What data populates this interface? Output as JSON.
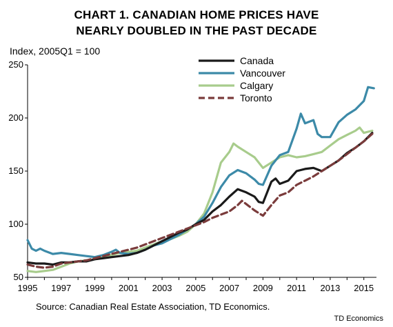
{
  "title_line1": "CHART 1. CANADIAN HOME PRICES HAVE",
  "title_line2": "NEARLY DOUBLED IN THE PAST DECADE",
  "source": "Source: Canadian Real Estate Association, TD Economics.",
  "credit": "TD Economics",
  "chart_data": {
    "type": "line",
    "title": "CHART 1. CANADIAN HOME PRICES HAVE NEARLY DOUBLED IN THE PAST DECADE",
    "ylabel": "Index, 2005Q1 = 100",
    "xlabel": "",
    "xlim": [
      1995,
      2015.75
    ],
    "ylim": [
      50,
      250
    ],
    "x_ticks": [
      1995,
      1997,
      1999,
      2001,
      2003,
      2005,
      2007,
      2009,
      2011,
      2013,
      2015
    ],
    "x_tick_labels": [
      "1995",
      "1997",
      "1999",
      "2001",
      "2003",
      "2005",
      "2007",
      "2009",
      "2011",
      "2013",
      "2015"
    ],
    "y_ticks": [
      50,
      100,
      150,
      200,
      250
    ],
    "y_tick_labels": [
      "50",
      "100",
      "150",
      "200",
      "250"
    ],
    "grid": false,
    "legend_position": "top-center",
    "series": [
      {
        "name": "Canada",
        "color": "#1a1a1a",
        "dash": "solid",
        "points": [
          [
            1995,
            64
          ],
          [
            1995.5,
            63
          ],
          [
            1996,
            63
          ],
          [
            1996.5,
            62
          ],
          [
            1997,
            64
          ],
          [
            1997.5,
            64
          ],
          [
            1998,
            65
          ],
          [
            1998.5,
            65
          ],
          [
            1999,
            67
          ],
          [
            1999.5,
            68
          ],
          [
            2000,
            69
          ],
          [
            2000.5,
            70
          ],
          [
            2001,
            71
          ],
          [
            2001.5,
            73
          ],
          [
            2002,
            76
          ],
          [
            2002.5,
            80
          ],
          [
            2003,
            84
          ],
          [
            2003.5,
            88
          ],
          [
            2004,
            92
          ],
          [
            2004.5,
            95
          ],
          [
            2005,
            100
          ],
          [
            2005.5,
            104
          ],
          [
            2006,
            112
          ],
          [
            2006.5,
            118
          ],
          [
            2007,
            126
          ],
          [
            2007.5,
            133
          ],
          [
            2008,
            130
          ],
          [
            2008.5,
            126
          ],
          [
            2008.75,
            121
          ],
          [
            2009,
            120
          ],
          [
            2009.25,
            130
          ],
          [
            2009.5,
            140
          ],
          [
            2009.75,
            143
          ],
          [
            2010,
            138
          ],
          [
            2010.5,
            141
          ],
          [
            2011,
            150
          ],
          [
            2011.5,
            152
          ],
          [
            2012,
            153
          ],
          [
            2012.5,
            150
          ],
          [
            2013,
            155
          ],
          [
            2013.5,
            160
          ],
          [
            2014,
            167
          ],
          [
            2014.5,
            172
          ],
          [
            2015,
            178
          ],
          [
            2015.5,
            186
          ]
        ]
      },
      {
        "name": "Vancouver",
        "color": "#3c8aa8",
        "dash": "solid",
        "points": [
          [
            1995,
            85
          ],
          [
            1995.25,
            77
          ],
          [
            1995.5,
            75
          ],
          [
            1995.75,
            77
          ],
          [
            1996,
            75
          ],
          [
            1996.5,
            72
          ],
          [
            1997,
            73
          ],
          [
            1997.5,
            72
          ],
          [
            1998,
            71
          ],
          [
            1998.5,
            70
          ],
          [
            1999,
            69
          ],
          [
            1999.5,
            71
          ],
          [
            2000,
            74
          ],
          [
            2000.25,
            76
          ],
          [
            2000.5,
            73
          ],
          [
            2001,
            72
          ],
          [
            2001.5,
            73
          ],
          [
            2002,
            76
          ],
          [
            2002.5,
            80
          ],
          [
            2003,
            82
          ],
          [
            2003.5,
            86
          ],
          [
            2004,
            90
          ],
          [
            2004.5,
            95
          ],
          [
            2005,
            100
          ],
          [
            2005.5,
            107
          ],
          [
            2006,
            120
          ],
          [
            2006.5,
            135
          ],
          [
            2007,
            146
          ],
          [
            2007.5,
            151
          ],
          [
            2008,
            148
          ],
          [
            2008.5,
            142
          ],
          [
            2008.75,
            138
          ],
          [
            2009,
            137
          ],
          [
            2009.5,
            155
          ],
          [
            2010,
            165
          ],
          [
            2010.5,
            168
          ],
          [
            2011,
            190
          ],
          [
            2011.25,
            204
          ],
          [
            2011.5,
            195
          ],
          [
            2012,
            198
          ],
          [
            2012.25,
            185
          ],
          [
            2012.5,
            182
          ],
          [
            2013,
            182
          ],
          [
            2013.5,
            196
          ],
          [
            2014,
            203
          ],
          [
            2014.5,
            208
          ],
          [
            2015,
            216
          ],
          [
            2015.25,
            229
          ],
          [
            2015.6,
            228
          ]
        ]
      },
      {
        "name": "Calgary",
        "color": "#a8cc8c",
        "dash": "solid",
        "points": [
          [
            1995,
            56
          ],
          [
            1995.5,
            55
          ],
          [
            1996,
            56
          ],
          [
            1996.5,
            57
          ],
          [
            1997,
            60
          ],
          [
            1997.5,
            63
          ],
          [
            1998,
            65
          ],
          [
            1998.5,
            66
          ],
          [
            1999,
            67
          ],
          [
            1999.5,
            69
          ],
          [
            2000,
            71
          ],
          [
            2000.5,
            73
          ],
          [
            2001,
            74
          ],
          [
            2001.5,
            75
          ],
          [
            2002,
            78
          ],
          [
            2002.5,
            81
          ],
          [
            2003,
            84
          ],
          [
            2003.5,
            86
          ],
          [
            2004,
            89
          ],
          [
            2004.5,
            93
          ],
          [
            2005,
            100
          ],
          [
            2005.5,
            110
          ],
          [
            2006,
            130
          ],
          [
            2006.5,
            158
          ],
          [
            2007,
            168
          ],
          [
            2007.25,
            176
          ],
          [
            2007.5,
            173
          ],
          [
            2008,
            168
          ],
          [
            2008.5,
            163
          ],
          [
            2009,
            153
          ],
          [
            2009.5,
            158
          ],
          [
            2010,
            163
          ],
          [
            2010.5,
            165
          ],
          [
            2011,
            163
          ],
          [
            2011.5,
            164
          ],
          [
            2012,
            166
          ],
          [
            2012.5,
            168
          ],
          [
            2013,
            174
          ],
          [
            2013.5,
            180
          ],
          [
            2014,
            184
          ],
          [
            2014.5,
            188
          ],
          [
            2014.75,
            191
          ],
          [
            2015,
            186
          ],
          [
            2015.5,
            188
          ]
        ]
      },
      {
        "name": "Toronto",
        "color": "#7a3b3b",
        "dash": "dashed",
        "points": [
          [
            1995,
            62
          ],
          [
            1995.5,
            60
          ],
          [
            1996,
            59
          ],
          [
            1996.5,
            60
          ],
          [
            1997,
            63
          ],
          [
            1997.5,
            64
          ],
          [
            1998,
            65
          ],
          [
            1998.5,
            66
          ],
          [
            1999,
            68
          ],
          [
            1999.5,
            70
          ],
          [
            2000,
            72
          ],
          [
            2000.5,
            74
          ],
          [
            2001,
            76
          ],
          [
            2001.5,
            78
          ],
          [
            2002,
            81
          ],
          [
            2002.5,
            84
          ],
          [
            2003,
            87
          ],
          [
            2003.5,
            90
          ],
          [
            2004,
            93
          ],
          [
            2004.5,
            96
          ],
          [
            2005,
            99
          ],
          [
            2005.5,
            102
          ],
          [
            2006,
            106
          ],
          [
            2006.5,
            109
          ],
          [
            2007,
            112
          ],
          [
            2007.5,
            118
          ],
          [
            2007.75,
            122
          ],
          [
            2008,
            119
          ],
          [
            2008.5,
            113
          ],
          [
            2009,
            108
          ],
          [
            2009.5,
            118
          ],
          [
            2010,
            127
          ],
          [
            2010.5,
            130
          ],
          [
            2011,
            137
          ],
          [
            2011.5,
            141
          ],
          [
            2012,
            145
          ],
          [
            2012.5,
            150
          ],
          [
            2013,
            155
          ],
          [
            2013.5,
            160
          ],
          [
            2014,
            166
          ],
          [
            2014.5,
            172
          ],
          [
            2015,
            178
          ],
          [
            2015.5,
            185
          ]
        ]
      }
    ]
  }
}
